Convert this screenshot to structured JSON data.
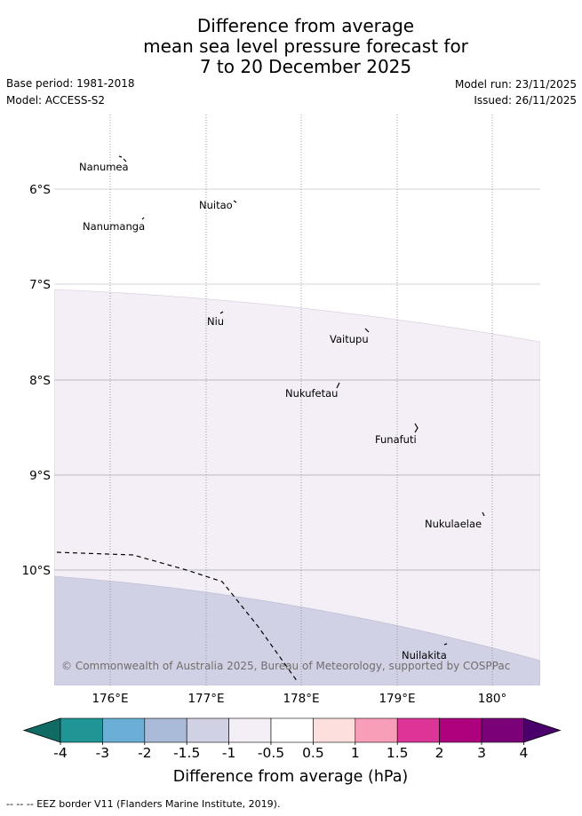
{
  "header": {
    "title_lines": [
      "Difference from average",
      "mean sea level pressure forecast for",
      "7 to 20 December 2025"
    ],
    "base_period": "Base period: 1981-2018",
    "model": "Model: ACCESS-S2",
    "model_run": "Model run: 23/11/2025",
    "issued": "Issued: 26/11/2025"
  },
  "map": {
    "lat_labels": [
      "6°S",
      "7°S",
      "8°S",
      "9°S",
      "10°S"
    ],
    "lon_labels": [
      "176°E",
      "177°E",
      "178°E",
      "179°E",
      "180°"
    ],
    "places": [
      "Nanumea",
      "Nuitao",
      "Nanumanga",
      "Niu",
      "Vaitupu",
      "Nukufetau",
      "Funafuti",
      "Nukulaelae",
      "Nuilakita"
    ],
    "copyright": "© Commonwealth of Australia 2025, Bureau of Meteorology, supported by COSPPac",
    "colors": {
      "band_minus1_minus05": "#f4eef6",
      "band_minus15_minus1": "#d1d1e5"
    }
  },
  "colorbar": {
    "tick_labels": [
      "-4",
      "-3",
      "-2",
      "-1.5",
      "-1",
      "-0.5",
      "0.5",
      "1",
      "1.5",
      "2",
      "3",
      "4"
    ],
    "title": "Difference from average (hPa)",
    "colors": [
      "#0f6b63",
      "#1f9596",
      "#6baed6",
      "#a9bbd8",
      "#d1d1e5",
      "#f4eef6",
      "#ffffff",
      "#fde0dd",
      "#f99eb8",
      "#dd3497",
      "#ae017e",
      "#7a0177",
      "#49006a"
    ]
  },
  "footer": {
    "legend": "-- -- -- EEZ border V11 (Flanders Marine Institute, 2019)."
  }
}
